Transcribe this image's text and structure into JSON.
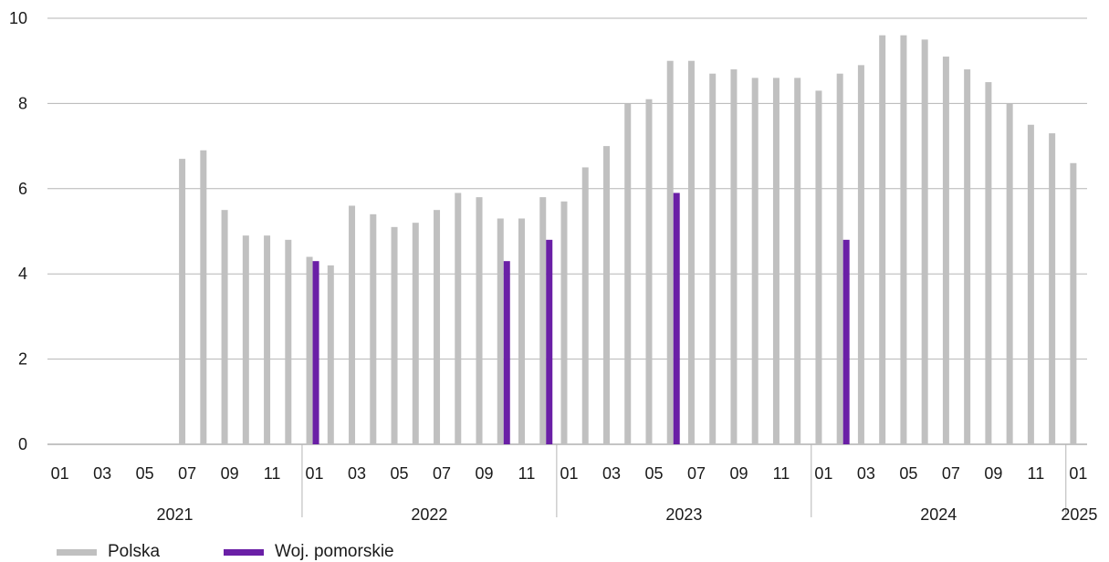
{
  "chart_data": {
    "type": "bar",
    "ylim": [
      0,
      10
    ],
    "yticks": [
      0,
      2,
      4,
      6,
      8,
      10
    ],
    "months": [
      "01",
      "02",
      "03",
      "04",
      "05",
      "06",
      "07",
      "08",
      "09",
      "10",
      "11",
      "12",
      "01",
      "02",
      "03",
      "04",
      "05",
      "06",
      "07",
      "08",
      "09",
      "10",
      "11",
      "12",
      "01",
      "02",
      "03",
      "04",
      "05",
      "06",
      "07",
      "08",
      "09",
      "10",
      "11",
      "12",
      "01",
      "02",
      "03",
      "04",
      "05",
      "06",
      "07",
      "08",
      "09",
      "10",
      "11",
      "12",
      "01"
    ],
    "month_tick_labels": [
      "01",
      "03",
      "05",
      "07",
      "09",
      "11",
      "01",
      "03",
      "05",
      "07",
      "09",
      "11",
      "01",
      "03",
      "05",
      "07",
      "09",
      "11",
      "01",
      "03",
      "05",
      "07",
      "09",
      "11",
      "01"
    ],
    "years": [
      "2021",
      "2022",
      "2023",
      "2024",
      "2025"
    ],
    "series": [
      {
        "name": "Polska",
        "color": "#c0c0c0",
        "values": [
          null,
          null,
          null,
          null,
          null,
          null,
          6.7,
          6.9,
          5.5,
          4.9,
          4.9,
          4.8,
          4.4,
          4.2,
          5.6,
          5.4,
          5.1,
          5.2,
          5.5,
          5.9,
          5.8,
          5.3,
          5.3,
          5.8,
          5.7,
          6.5,
          7.0,
          8.0,
          8.1,
          9.0,
          9.0,
          8.7,
          8.8,
          8.6,
          8.6,
          8.6,
          8.3,
          8.7,
          8.9,
          9.6,
          9.6,
          9.5,
          9.1,
          8.8,
          8.5,
          8.0,
          7.5,
          7.3,
          6.6
        ]
      },
      {
        "name": "Woj. pomorskie",
        "color": "#6a1fa6",
        "values": [
          null,
          null,
          null,
          null,
          null,
          null,
          null,
          null,
          null,
          null,
          null,
          null,
          4.3,
          null,
          null,
          null,
          null,
          null,
          null,
          null,
          null,
          4.3,
          null,
          4.8,
          null,
          null,
          null,
          null,
          null,
          5.9,
          null,
          null,
          null,
          null,
          null,
          null,
          null,
          4.8,
          null,
          null,
          null,
          null,
          null,
          null,
          null,
          null,
          null,
          null,
          null
        ]
      }
    ]
  }
}
